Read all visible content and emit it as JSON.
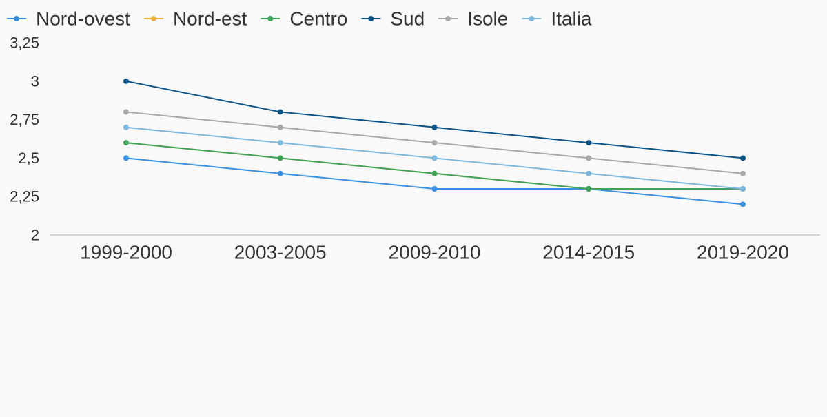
{
  "chart_data": {
    "type": "line",
    "categories": [
      "1999-2000",
      "2003-2005",
      "2009-2010",
      "2014-2015",
      "2019-2020"
    ],
    "series": [
      {
        "name": "Nord-ovest",
        "color": "#3a8fe0",
        "values": [
          2.5,
          2.4,
          2.3,
          2.3,
          2.2
        ]
      },
      {
        "name": "Nord-est",
        "color": "#f5b335",
        "values": [
          2.6,
          2.5,
          2.4,
          2.3,
          2.3
        ]
      },
      {
        "name": "Centro",
        "color": "#3fa35c",
        "values": [
          2.6,
          2.5,
          2.4,
          2.3,
          2.3
        ]
      },
      {
        "name": "Sud",
        "color": "#0b5487",
        "values": [
          3.0,
          2.8,
          2.7,
          2.6,
          2.5
        ]
      },
      {
        "name": "Isole",
        "color": "#a8a8a8",
        "values": [
          2.8,
          2.7,
          2.6,
          2.5,
          2.4
        ]
      },
      {
        "name": "Italia",
        "color": "#7db7dc",
        "values": [
          2.7,
          2.6,
          2.5,
          2.4,
          2.3
        ]
      }
    ],
    "ylim": [
      2,
      3.25
    ],
    "yticks": [
      2,
      2.25,
      2.5,
      2.75,
      3,
      3.25
    ],
    "ytick_labels": [
      "2",
      "2,25",
      "2,5",
      "2,75",
      "3",
      "3,25"
    ],
    "grid": false,
    "legend": "top-left",
    "title": "",
    "xlabel": "",
    "ylabel": ""
  }
}
